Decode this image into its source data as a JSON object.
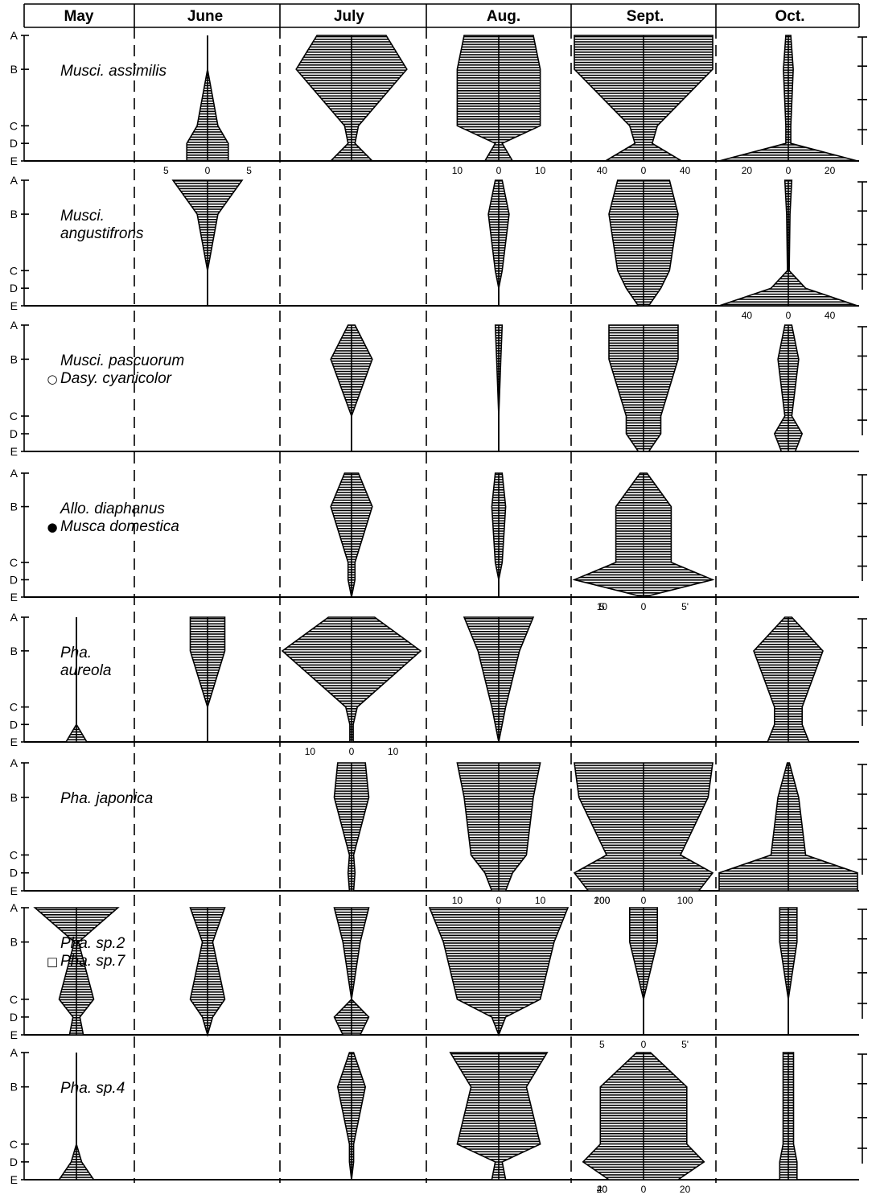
{
  "chart_data": {
    "type": "kite diagram",
    "months": [
      "May",
      "June",
      "July",
      "Aug.",
      "Sept.",
      "Oct."
    ],
    "stations": [
      "A",
      "B",
      "C",
      "D",
      "E"
    ],
    "legend_symbols": {
      "open_circle": "○",
      "filled_circle": "●",
      "open_square": "□"
    },
    "sex_symbols": {
      "female": "♀",
      "male": "♂"
    },
    "panels": [
      {
        "title_lines": [
          {
            "text": "Musci. assimilis",
            "symbol": ""
          }
        ],
        "kites": [
          {
            "month": "June",
            "halfwidths": [
              0,
              0,
              0.3,
              0.6,
              0.6
            ]
          },
          {
            "month": "July",
            "halfwidths": [
              5,
              8,
              1,
              0.5,
              3
            ]
          },
          {
            "month": "Aug.",
            "halfwidths": [
              5,
              6,
              6,
              0.5,
              2
            ]
          },
          {
            "month": "Sept.",
            "halfwidths": [
              40,
              40,
              8,
              5,
              22
            ]
          },
          {
            "month": "Oct.",
            "halfwidths": [
              1,
              2,
              1,
              1,
              28
            ]
          }
        ],
        "tick_labels": [
          {
            "text": "5",
            "month": "June",
            "side": "left"
          },
          {
            "text": "0",
            "month": "June",
            "side": "center"
          },
          {
            "text": "5",
            "month": "June",
            "side": "right"
          },
          {
            "text": "10",
            "month": "Aug.",
            "side": "left"
          },
          {
            "text": "0",
            "month": "Aug.",
            "side": "center"
          },
          {
            "text": "10",
            "month": "Aug.",
            "side": "right"
          },
          {
            "text": "40",
            "month": "Sept.",
            "side": "left"
          },
          {
            "text": "0",
            "month": "Sept.",
            "side": "center"
          },
          {
            "text": "40",
            "month": "Sept.",
            "side": "right"
          },
          {
            "text": "20",
            "month": "Oct.",
            "side": "left"
          },
          {
            "text": "0",
            "month": "Oct.",
            "side": "center"
          },
          {
            "text": "20",
            "month": "Oct.",
            "side": "right"
          }
        ]
      },
      {
        "title_lines": [
          {
            "text": "Musci.",
            "symbol": ""
          },
          {
            "text": "angustifrons",
            "symbol": ""
          }
        ],
        "kites": [
          {
            "month": "June",
            "halfwidths": [
              1,
              0.3,
              0,
              0,
              0
            ]
          },
          {
            "month": "Aug.",
            "halfwidths": [
              0.5,
              1.5,
              0.5,
              0,
              0
            ]
          },
          {
            "month": "Sept.",
            "halfwidths": [
              15,
              20,
              15,
              10,
              3
            ]
          },
          {
            "month": "Oct.",
            "halfwidths": [
              2,
              1,
              0.5,
              10,
              40
            ]
          }
        ],
        "tick_labels": [
          {
            "text": "40",
            "month": "Oct.",
            "side": "left"
          },
          {
            "text": "0",
            "month": "Oct.",
            "side": "center"
          },
          {
            "text": "40",
            "month": "Oct.",
            "side": "right"
          }
        ]
      },
      {
        "title_lines": [
          {
            "text": "Musci. pascuorum",
            "symbol": ""
          },
          {
            "text": "Dasy. cyanicolor",
            "symbol": "open_circle"
          }
        ],
        "kites": [
          {
            "month": "July",
            "halfwidths": [
              0.5,
              3,
              0,
              0,
              0
            ]
          },
          {
            "month": "Aug.",
            "halfwidths": [
              0.5,
              0.3,
              0,
              0,
              0
            ]
          },
          {
            "month": "Sept.",
            "halfwidths": [
              20,
              20,
              10,
              10,
              3
            ]
          },
          {
            "month": "Oct.",
            "halfwidths": [
              0.5,
              1.5,
              0.5,
              2,
              1
            ]
          }
        ],
        "tick_labels": []
      },
      {
        "title_lines": [
          {
            "text": "Allo. diaphanus",
            "symbol": ""
          },
          {
            "text": "Musca domestica",
            "symbol": "filled_circle"
          }
        ],
        "kites": [
          {
            "month": "July",
            "halfwidths": [
              1,
              3,
              0.5,
              0.5,
              0
            ]
          },
          {
            "month": "Aug.",
            "halfwidths": [
              0.5,
              1,
              0.5,
              0,
              0
            ]
          },
          {
            "month": "Sept.",
            "halfwidths": [
              0.5,
              4,
              4,
              10,
              0
            ]
          }
        ],
        "tick_labels": [
          {
            "text": "10",
            "month": "Sept.",
            "side": "left"
          },
          {
            "text": "5",
            "month": "Sept.",
            "side": "left"
          },
          {
            "text": "0",
            "month": "Sept.",
            "side": "center"
          },
          {
            "text": "5'",
            "month": "Sept.",
            "side": "right"
          }
        ]
      },
      {
        "title_lines": [
          {
            "text": "Pha.",
            "symbol": ""
          },
          {
            "text": "aureola",
            "symbol": ""
          }
        ],
        "kites": [
          {
            "month": "May",
            "halfwidths": [
              0,
              0,
              0,
              0,
              0.3
            ]
          },
          {
            "month": "June",
            "halfwidths": [
              0.5,
              0.5,
              0,
              0,
              0
            ]
          },
          {
            "month": "July",
            "halfwidths": [
              4,
              12,
              1,
              0.3,
              0.3
            ]
          },
          {
            "month": "Aug.",
            "halfwidths": [
              5,
              3,
              1,
              0.5,
              0
            ]
          },
          {
            "month": "Oct.",
            "halfwidths": [
              0.5,
              5,
              2,
              2,
              3
            ]
          }
        ],
        "tick_labels": [
          {
            "text": "10",
            "month": "July",
            "side": "left"
          },
          {
            "text": "0",
            "month": "July",
            "side": "center"
          },
          {
            "text": "10",
            "month": "July",
            "side": "right"
          }
        ]
      },
      {
        "title_lines": [
          {
            "text": "Pha. japonica",
            "symbol": ""
          }
        ],
        "kites": [
          {
            "month": "July",
            "halfwidths": [
              2,
              2.5,
              0.3,
              0.5,
              0.3
            ]
          },
          {
            "month": "Aug.",
            "halfwidths": [
              6,
              5,
              4,
              2,
              1
            ]
          },
          {
            "month": "Sept.",
            "halfwidths": [
              150,
              140,
              80,
              150,
              120
            ]
          },
          {
            "month": "Oct.",
            "halfwidths": [
              0.3,
              3,
              5,
              20,
              20
            ]
          }
        ],
        "tick_labels": [
          {
            "text": "10",
            "month": "Aug.",
            "side": "left"
          },
          {
            "text": "0",
            "month": "Aug.",
            "side": "center"
          },
          {
            "text": "10",
            "month": "Aug.",
            "side": "right"
          },
          {
            "text": "200",
            "month": "Sept.",
            "side": "left"
          },
          {
            "text": "100",
            "month": "Sept.",
            "side": "left"
          },
          {
            "text": "0",
            "month": "Sept.",
            "side": "center"
          },
          {
            "text": "100",
            "month": "Sept.",
            "side": "right"
          }
        ]
      },
      {
        "title_lines": [
          {
            "text": "Pha. sp.2",
            "symbol": ""
          },
          {
            "text": "Pha. sp.7",
            "symbol": "open_square"
          }
        ],
        "kites": [
          {
            "month": "May",
            "halfwidths": [
              6,
              0.3,
              2.5,
              0.5,
              1
            ]
          },
          {
            "month": "June",
            "halfwidths": [
              1,
              0.3,
              1,
              0.3,
              0
            ]
          },
          {
            "month": "July",
            "halfwidths": [
              1,
              0.5,
              0,
              1,
              0.5
            ]
          },
          {
            "month": "Aug.",
            "halfwidths": [
              10,
              8,
              6,
              1,
              0
            ]
          },
          {
            "month": "Sept.",
            "halfwidths": [
              1,
              1,
              0,
              0,
              0
            ]
          },
          {
            "month": "Oct.",
            "halfwidths": [
              0.5,
              0.5,
              0,
              0,
              0
            ]
          }
        ],
        "tick_labels": [
          {
            "text": "5",
            "month": "Sept.",
            "side": "left"
          },
          {
            "text": "0",
            "month": "Sept.",
            "side": "center"
          },
          {
            "text": "5'",
            "month": "Sept.",
            "side": "right"
          }
        ]
      },
      {
        "title_lines": [
          {
            "text": "Pha. sp.4",
            "symbol": ""
          }
        ],
        "kites": [
          {
            "month": "May",
            "halfwidths": [
              0,
              0,
              0,
              0.3,
              1
            ]
          },
          {
            "month": "July",
            "halfwidths": [
              0.3,
              2,
              0.3,
              0.3,
              0
            ]
          },
          {
            "month": "Aug.",
            "halfwidths": [
              7,
              4,
              6,
              0.5,
              1
            ]
          },
          {
            "month": "Sept.",
            "halfwidths": [
              4,
              25,
              25,
              35,
              20
            ]
          },
          {
            "month": "Oct.",
            "halfwidths": [
              0.3,
              0.3,
              0.3,
              0.5,
              0.5
            ]
          }
        ],
        "tick_labels": [
          {
            "text": "40",
            "month": "Sept.",
            "side": "left"
          },
          {
            "text": "20",
            "month": "Sept.",
            "side": "left"
          },
          {
            "text": "0",
            "month": "Sept.",
            "side": "center"
          },
          {
            "text": "20",
            "month": "Sept.",
            "side": "right"
          }
        ]
      }
    ]
  }
}
